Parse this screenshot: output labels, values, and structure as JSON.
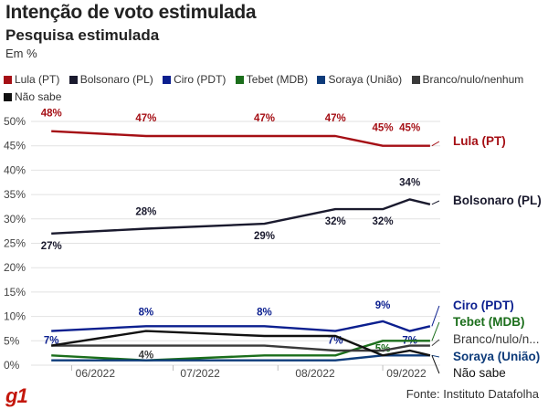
{
  "header": {
    "title": "Intenção de voto estimulada",
    "subtitle": "Pesquisa estimulada",
    "unit": "Em %"
  },
  "legend": [
    {
      "label": "Lula (PT)",
      "color": "#a50f15"
    },
    {
      "label": "Bolsonaro (PL)",
      "color": "#1a1a2e"
    },
    {
      "label": "Ciro (PDT)",
      "color": "#0b1f8f"
    },
    {
      "label": "Tebet (MDB)",
      "color": "#1b6e1b"
    },
    {
      "label": "Soraya (União)",
      "color": "#0d3b7a"
    },
    {
      "label": "Branco/nulo/nenhum",
      "color": "#3a3a3a"
    },
    {
      "label": "Não sabe",
      "color": "#111111"
    }
  ],
  "footer": {
    "logo": "g1",
    "source": "Fonte: Instituto Datafolha"
  },
  "chart_data": {
    "type": "line",
    "ylim": [
      0,
      50
    ],
    "y_ticks": [
      "0%",
      "5%",
      "10%",
      "15%",
      "20%",
      "25%",
      "30%",
      "35%",
      "40%",
      "45%",
      "50%"
    ],
    "x_ticks": [
      "06/2022",
      "07/2022",
      "08/2022",
      "09/2022"
    ],
    "grid": true,
    "series": [
      {
        "name": "Lula (PT)",
        "color": "#a50f15",
        "x": [
          "2022-05-26",
          "2022-06-23",
          "2022-07-28",
          "2022-08-18",
          "2022-09-01",
          "2022-09-09",
          "2022-09-15"
        ],
        "values": [
          48,
          47,
          47,
          47,
          45,
          45,
          45
        ],
        "end_label": "Lula (PT)",
        "labels": [
          "48%",
          "47%",
          "47%",
          "47%",
          "45%",
          "45%"
        ]
      },
      {
        "name": "Bolsonaro (PL)",
        "color": "#1a1a2e",
        "x": [
          "2022-05-26",
          "2022-06-23",
          "2022-07-28",
          "2022-08-18",
          "2022-09-01",
          "2022-09-09",
          "2022-09-15"
        ],
        "values": [
          27,
          28,
          29,
          32,
          32,
          34,
          33
        ],
        "end_label": "Bolsonaro (PL)",
        "labels": [
          "27%",
          "28%",
          "29%",
          "32%",
          "32%",
          "34%"
        ]
      },
      {
        "name": "Ciro (PDT)",
        "color": "#0b1f8f",
        "x": [
          "2022-05-26",
          "2022-06-23",
          "2022-07-28",
          "2022-08-18",
          "2022-09-01",
          "2022-09-09",
          "2022-09-15"
        ],
        "values": [
          7,
          8,
          8,
          7,
          9,
          7,
          8
        ],
        "end_label": "Ciro (PDT)",
        "labels": [
          "7%",
          "8%",
          "8%",
          "7%",
          "9%",
          "7%"
        ]
      },
      {
        "name": "Tebet (MDB)",
        "color": "#1b6e1b",
        "x": [
          "2022-05-26",
          "2022-06-23",
          "2022-07-28",
          "2022-08-18",
          "2022-09-01",
          "2022-09-09",
          "2022-09-15"
        ],
        "values": [
          2,
          1,
          2,
          2,
          5,
          5,
          5
        ],
        "end_label": "Tebet (MDB)",
        "labels": [
          "5%"
        ]
      },
      {
        "name": "Soraya (União)",
        "color": "#0d3b7a",
        "x": [
          "2022-05-26",
          "2022-06-23",
          "2022-07-28",
          "2022-08-18",
          "2022-09-01",
          "2022-09-09",
          "2022-09-15"
        ],
        "values": [
          1,
          1,
          1,
          1,
          2,
          2,
          2
        ],
        "end_label": "Soraya (União)",
        "labels": []
      },
      {
        "name": "Branco/nulo/nenhum",
        "color": "#3a3a3a",
        "x": [
          "2022-05-26",
          "2022-06-23",
          "2022-07-28",
          "2022-08-18",
          "2022-09-01",
          "2022-09-09",
          "2022-09-15"
        ],
        "values": [
          4,
          4,
          4,
          3,
          3,
          4,
          4
        ],
        "end_label": "Branco/nulo/n...",
        "labels": [
          "4%"
        ]
      },
      {
        "name": "Não sabe",
        "color": "#111111",
        "x": [
          "2022-05-26",
          "2022-06-23",
          "2022-07-28",
          "2022-08-18",
          "2022-09-01",
          "2022-09-09",
          "2022-09-15"
        ],
        "values": [
          4,
          7,
          6,
          6,
          2,
          3,
          2
        ],
        "end_label": "Não sabe",
        "labels": []
      }
    ]
  }
}
